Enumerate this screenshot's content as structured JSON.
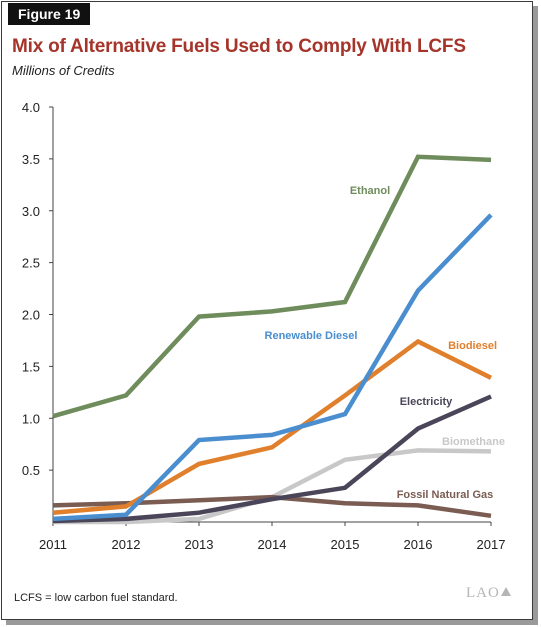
{
  "figure_label": "Figure 19",
  "title": "Mix of Alternative Fuels Used to Comply With LCFS",
  "subtitle": "Millions of Credits",
  "footnote": "LCFS = low carbon fuel standard.",
  "logo_text": "LAO",
  "chart_data": {
    "type": "line",
    "x": [
      2011,
      2012,
      2013,
      2014,
      2015,
      2016,
      2017
    ],
    "y_ticks": [
      "0.5",
      "1.0",
      "1.5",
      "2.0",
      "2.5",
      "3.0",
      "3.5",
      "4.0"
    ],
    "ylim": [
      0,
      4.0
    ],
    "grid": false,
    "legend": "inline labels",
    "series": [
      {
        "name": "Ethanol",
        "color": "#6f8c5c",
        "values": [
          1.02,
          1.22,
          1.98,
          2.03,
          2.12,
          3.52,
          3.49
        ]
      },
      {
        "name": "Renewable Diesel",
        "color": "#4a8ed0",
        "values": [
          0.03,
          0.07,
          0.79,
          0.84,
          1.04,
          2.23,
          2.96
        ]
      },
      {
        "name": "Biodiesel",
        "color": "#e07f2c",
        "values": [
          0.09,
          0.15,
          0.56,
          0.72,
          1.22,
          1.74,
          1.39
        ]
      },
      {
        "name": "Electricity",
        "color": "#4a4558",
        "values": [
          0.01,
          0.03,
          0.09,
          0.22,
          0.33,
          0.9,
          1.21
        ]
      },
      {
        "name": "Biomethane",
        "color": "#c8c8c8",
        "values": [
          0.0,
          0.0,
          0.03,
          0.24,
          0.6,
          0.69,
          0.68
        ]
      },
      {
        "name": "Fossil Natural Gas",
        "color": "#7a5c52",
        "values": [
          0.16,
          0.18,
          0.21,
          0.24,
          0.18,
          0.16,
          0.06
        ]
      }
    ]
  }
}
